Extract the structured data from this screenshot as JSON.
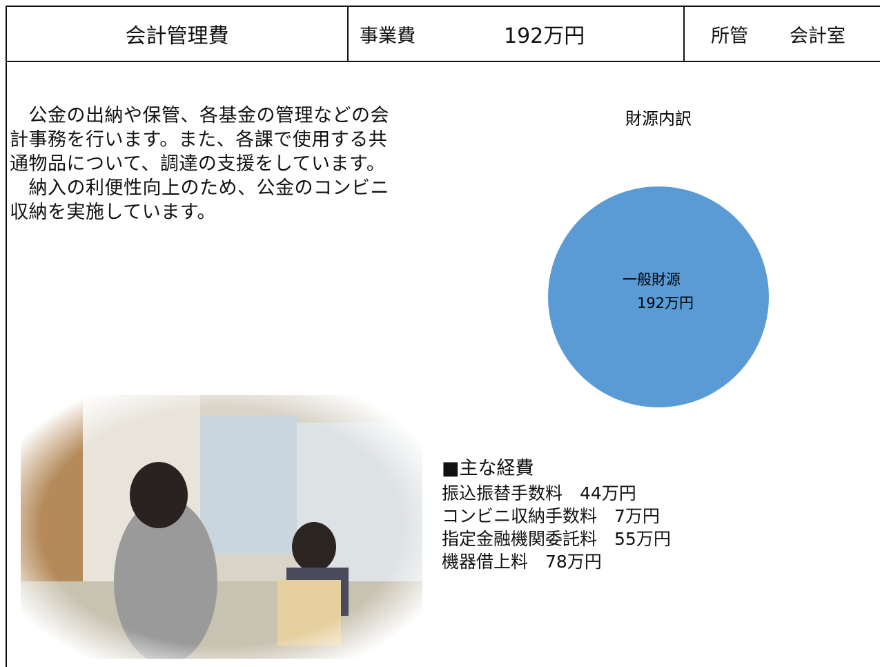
{
  "header": {
    "title": "会計管理費",
    "cost_label": "事業費",
    "cost": "192万円",
    "dept_label": "所管",
    "dept": "会計室"
  },
  "description": {
    "lines": [
      "　公金の出納や保管、各基金の管理などの会",
      "計事務を行います。また、各課で使用する共",
      "通物品について、調達の支援をしています。",
      "　納入の利便性向上のため、公金のコンビニ",
      "収納を実施しています。"
    ]
  },
  "expenses": {
    "heading": "■主な経費",
    "items": [
      "振込振替手数料　44万円",
      "コンビニ収納手数料　7万円",
      "指定金融機関委託料　55万円",
      "機器借上料　78万円"
    ]
  },
  "chart_data": {
    "type": "pie",
    "title": "財源内訳",
    "categories": [
      "一般財源"
    ],
    "values": [
      192
    ],
    "value_labels": [
      "192万円"
    ],
    "color": "#5b9bd5"
  }
}
